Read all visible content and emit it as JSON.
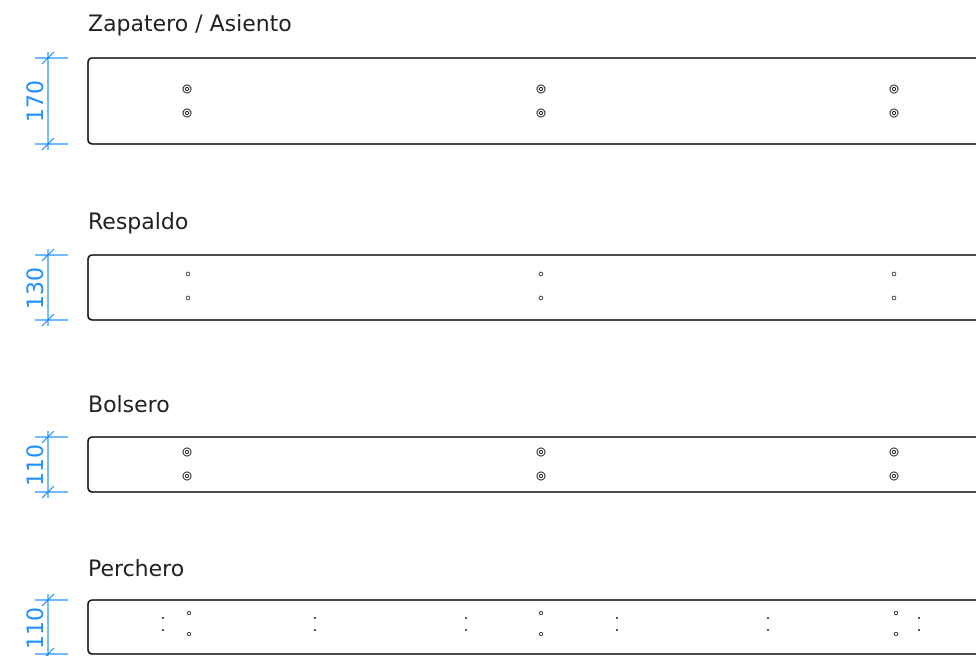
{
  "colors": {
    "dimension": "#1e90ff",
    "outline": "#111111",
    "text": "#222222"
  },
  "boards": [
    {
      "title": "Zapatero / Asiento",
      "dimension": "170",
      "hole_type": "double-ring"
    },
    {
      "title": "Respaldo",
      "dimension": "130",
      "hole_type": "small-circle"
    },
    {
      "title": "Bolsero",
      "dimension": "110",
      "hole_type": "double-ring"
    },
    {
      "title": "Perchero",
      "dimension": "110",
      "hole_type": "mixed-small-and-dots"
    }
  ]
}
